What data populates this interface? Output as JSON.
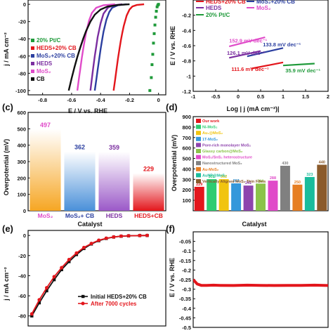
{
  "panels": {
    "a": {
      "label": "",
      "xlabel": "E / V vs. RHE",
      "ylabel": "j / mA cm⁻²"
    },
    "b": {
      "label": "",
      "xlabel": "Log | j (mA cm⁻²)|",
      "ylabel": "E / V vs. RHE"
    },
    "c": {
      "label": "(c)",
      "xlabel": "Catalyst",
      "ylabel": "Overpotential (mV)"
    },
    "d": {
      "label": "(d)",
      "xlabel": "Catalyst",
      "ylabel": "Overpotential (mV)"
    },
    "e": {
      "label": "(e)",
      "xlabel": "",
      "ylabel": "j / mA cm⁻²"
    },
    "f": {
      "label": "(f)",
      "xlabel": "",
      "ylabel": "E / V vs. RHE"
    }
  },
  "chart_data": [
    {
      "panel": "a",
      "type": "line",
      "xlim": [
        -0.9,
        0.05
      ],
      "ylim": [
        -105,
        5
      ],
      "xticks": [
        -0.8,
        -0.6,
        -0.4,
        -0.2,
        0.0
      ],
      "yticks": [
        0,
        -20,
        -40,
        -60,
        -80,
        -100
      ],
      "legend_position": "left-middle",
      "series": [
        {
          "name": "20% Pt/C",
          "color": "#1f9a3a",
          "style": "dots",
          "x": [
            -0.06,
            -0.05,
            -0.045,
            -0.04,
            -0.035,
            -0.03,
            -0.025,
            -0.02,
            -0.015,
            -0.01,
            -0.005,
            0.0
          ],
          "y": [
            -100,
            -85,
            -70,
            -58,
            -45,
            -34,
            -24,
            -15,
            -8,
            -3,
            -1,
            0
          ]
        },
        {
          "name": "HEDS+20% CB",
          "color": "#e3161c",
          "x": [
            -0.31,
            -0.3,
            -0.29,
            -0.28,
            -0.27,
            -0.26,
            -0.25,
            -0.24,
            -0.22,
            -0.2,
            -0.18,
            -0.15,
            -0.1
          ],
          "y": [
            -100,
            -88,
            -75,
            -63,
            -52,
            -42,
            -33,
            -25,
            -13,
            -6,
            -2.5,
            -0.8,
            0
          ]
        },
        {
          "name": "MoS₂+20% CB",
          "color": "#2b3fa0",
          "x": [
            -0.44,
            -0.43,
            -0.42,
            -0.41,
            -0.4,
            -0.39,
            -0.38,
            -0.36,
            -0.34,
            -0.32,
            -0.28,
            -0.22
          ],
          "y": [
            -100,
            -88,
            -76,
            -64,
            -52,
            -42,
            -32,
            -18,
            -9,
            -4,
            -1,
            0
          ]
        },
        {
          "name": "HEDS",
          "color": "#7b2ea0",
          "x": [
            -0.47,
            -0.46,
            -0.45,
            -0.44,
            -0.43,
            -0.42,
            -0.4,
            -0.38,
            -0.35,
            -0.31,
            -0.25
          ],
          "y": [
            -100,
            -86,
            -73,
            -60,
            -49,
            -38,
            -22,
            -11,
            -4,
            -1,
            0
          ]
        },
        {
          "name": "MoS₂",
          "color": "#e04bc9",
          "x": [
            -0.56,
            -0.55,
            -0.54,
            -0.53,
            -0.52,
            -0.51,
            -0.5,
            -0.48,
            -0.46,
            -0.43,
            -0.38,
            -0.3
          ],
          "y": [
            -100,
            -87,
            -75,
            -63,
            -52,
            -42,
            -33,
            -19,
            -10,
            -4,
            -1,
            0
          ]
        },
        {
          "name": "CB",
          "color": "#111111",
          "x": [
            -0.62,
            -0.6,
            -0.58,
            -0.56,
            -0.54,
            -0.52,
            -0.5,
            -0.47,
            -0.44,
            -0.4,
            -0.35,
            -0.28,
            -0.2
          ],
          "y": [
            -100,
            -86,
            -73,
            -61,
            -50,
            -40,
            -31,
            -20,
            -12,
            -6,
            -2.5,
            -0.8,
            0
          ]
        }
      ]
    },
    {
      "panel": "b",
      "type": "line",
      "xlim": [
        -1.0,
        2.0
      ],
      "ylim": [
        -1.2,
        0.0
      ],
      "xticks": [
        -1.0,
        -0.5,
        0.0,
        0.5,
        1.0,
        1.5,
        2.0
      ],
      "yticks": [
        -0.2,
        -0.4,
        -0.6,
        -0.8,
        -1.0,
        -1.2
      ],
      "legend_position": "top",
      "series": [
        {
          "name": "HEDS+20% CB",
          "color": "#e3161c",
          "x": [
            0.3,
            1.0
          ],
          "y": [
            -0.9,
            -0.82
          ]
        },
        {
          "name": "MoS₂+20% CB",
          "color": "#2b3fa0",
          "x": [
            0.2,
            1.0
          ],
          "y": [
            -0.74,
            -0.63
          ]
        },
        {
          "name": "HEDS",
          "color": "#7b2ea0",
          "x": [
            -0.2,
            0.5
          ],
          "y": [
            -0.76,
            -0.67
          ]
        },
        {
          "name": "MoS₂",
          "color": "#e04bc9",
          "x": [
            -0.2,
            0.6
          ],
          "y": [
            -0.61,
            -0.49
          ]
        },
        {
          "name": "20% Pt/C",
          "color": "#1f9a3a",
          "x": [
            1.0,
            1.7
          ],
          "y": [
            -0.86,
            -0.835
          ]
        }
      ],
      "annotations": [
        {
          "text": "152.9 mV dec⁻¹",
          "color": "#e04bc9",
          "x": -0.2,
          "y": -0.56
        },
        {
          "text": "133.8 mV dec⁻¹",
          "color": "#2b3fa0",
          "x": 0.55,
          "y": -0.61
        },
        {
          "text": "126.1 mV dec⁻¹",
          "color": "#7b2ea0",
          "x": -0.25,
          "y": -0.72
        },
        {
          "text": "111.6 mV dec⁻¹",
          "color": "#e3161c",
          "x": -0.15,
          "y": -0.93
        },
        {
          "text": "35.9 mV dec⁻¹",
          "color": "#1f9a3a",
          "x": 1.05,
          "y": -0.95
        }
      ]
    },
    {
      "panel": "c",
      "type": "bar",
      "categories": [
        "MoS₂",
        "MoS₂+ CB",
        "HEDS",
        "HEDS+CB"
      ],
      "values": [
        497,
        362,
        359,
        229
      ],
      "colors": [
        "#f6a623",
        "#4a90d9",
        "#9b59c8",
        "#e3161c"
      ],
      "label_colors": [
        "#e04bc9",
        "#2b3fa0",
        "#7b2ea0",
        "#e3161c"
      ],
      "ylim": [
        0,
        600
      ],
      "yticks": [
        0,
        100,
        200,
        300,
        400,
        500,
        600
      ]
    },
    {
      "panel": "d",
      "type": "bar",
      "legend_position": "top-left",
      "categories": [
        "Our work",
        "Ni-MoS₂",
        "Au₁@MoS₂",
        "1T-MoS₂",
        "Pore-rich monolayer MoS₂",
        "Glassy carbon@MoS₂",
        "MoS₂/SnS₂ heterostructure",
        "Nanostructured MoS₂",
        "Au-MoS₂",
        "AuNP@MoS₂",
        "Vertically Aligned MoS₂ Thin Films"
      ],
      "values": [
        229,
        302,
        302,
        262,
        241,
        260,
        288,
        430,
        250,
        323,
        440
      ],
      "colors": [
        "#e3161c",
        "#2ecc71",
        "#f1c40f",
        "#3498db",
        "#8e44ad",
        "#8bc34a",
        "#e04bc9",
        "#808080",
        "#e67e22",
        "#1abc9c",
        "#8b5a2b"
      ],
      "ylim": [
        0,
        900
      ],
      "yticks": [
        100,
        200,
        300,
        400,
        500,
        600,
        700,
        800,
        900
      ]
    },
    {
      "panel": "e",
      "type": "line",
      "xlim": [
        -0.32,
        0.05
      ],
      "ylim": [
        -90,
        5
      ],
      "yticks": [
        0,
        -20,
        -40,
        -60,
        -80
      ],
      "legend_position": "bottom-right",
      "series": [
        {
          "name": "Initial HEDS+20% CB",
          "color": "#111111",
          "marker": "square",
          "x": [
            -0.31,
            -0.29,
            -0.27,
            -0.25,
            -0.23,
            -0.21,
            -0.19,
            -0.17,
            -0.15,
            -0.13,
            -0.11,
            -0.09,
            -0.07,
            -0.05,
            -0.02,
            0.0
          ],
          "y": [
            -80,
            -67,
            -55,
            -44,
            -34,
            -26,
            -19,
            -13,
            -8.5,
            -5.2,
            -3,
            -1.6,
            -0.8,
            -0.4,
            -0.1,
            0
          ]
        },
        {
          "name": "After 7000 cycles",
          "color": "#e3161c",
          "marker": "circle",
          "x": [
            -0.31,
            -0.29,
            -0.27,
            -0.25,
            -0.23,
            -0.21,
            -0.19,
            -0.17,
            -0.15,
            -0.13,
            -0.11,
            -0.09,
            -0.07,
            -0.05,
            -0.02,
            0.0
          ],
          "y": [
            -78,
            -64,
            -52,
            -41,
            -32,
            -24,
            -17.5,
            -12,
            -8,
            -4.8,
            -2.8,
            -1.5,
            -0.7,
            -0.3,
            -0.1,
            0
          ]
        }
      ]
    },
    {
      "panel": "f",
      "type": "line",
      "xlim": [
        0,
        10
      ],
      "ylim": [
        -0.5,
        0.0
      ],
      "yticks": [
        -0.05,
        -0.1,
        -0.15,
        -0.2,
        -0.25,
        -0.3,
        -0.35,
        -0.4,
        -0.45,
        -0.5
      ],
      "series": [
        {
          "name": "",
          "color": "#e3161c",
          "x": [
            0,
            0.3,
            0.6,
            1,
            1.5,
            2,
            3,
            4,
            5,
            6,
            7,
            8,
            9,
            10
          ],
          "y": [
            -0.25,
            -0.273,
            -0.28,
            -0.28,
            -0.279,
            -0.28,
            -0.281,
            -0.279,
            -0.28,
            -0.281,
            -0.28,
            -0.28,
            -0.279,
            -0.281
          ]
        }
      ]
    }
  ]
}
